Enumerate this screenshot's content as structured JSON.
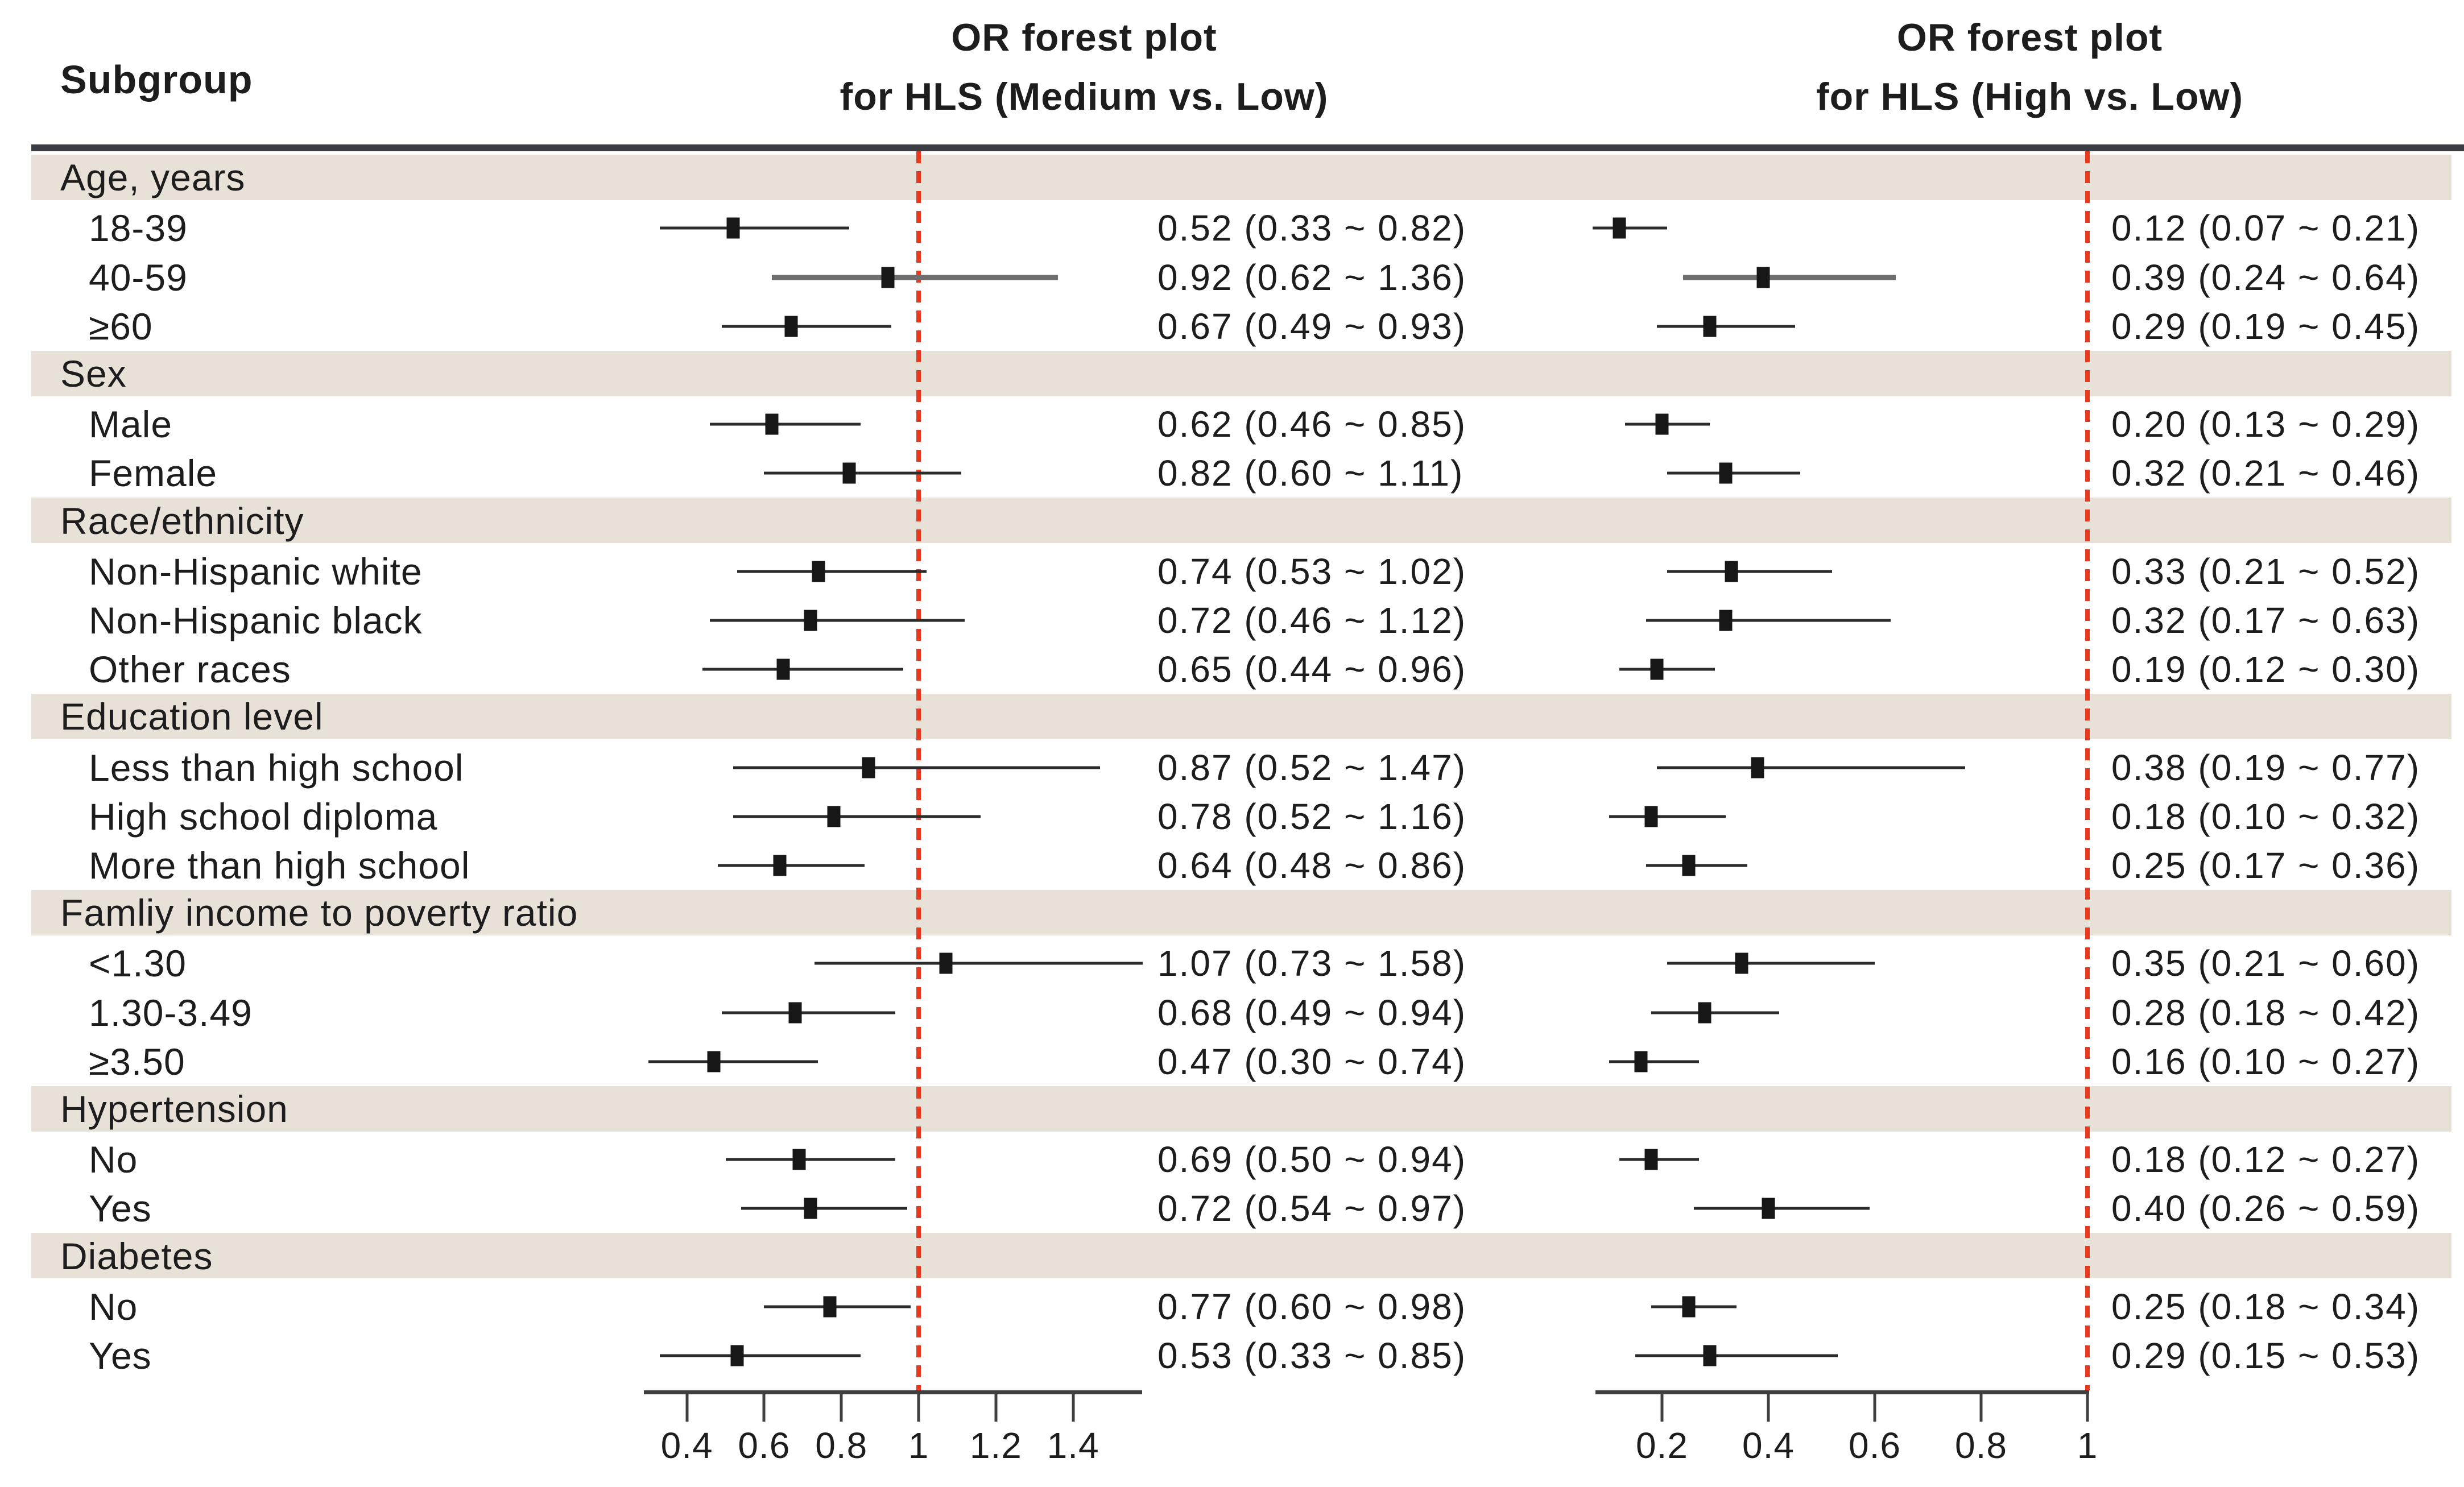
{
  "header": {
    "subgroup_label": "Subgroup",
    "left_title_line1": "OR forest plot",
    "left_title_line2": "for HLS (Medium vs. Low)",
    "right_title_line1": "OR forest plot",
    "right_title_line2": "for HLS (High vs. Low)"
  },
  "colors": {
    "band": "#e8e1d8",
    "reference_line": "#e8391f",
    "ci_line": "#2b2b2b",
    "ci_line_heavy": "#6e6e6e",
    "marker": "#171717",
    "axis": "#3f3f3f",
    "top_rule": "#3a3d43",
    "text": "#1d1d1d"
  },
  "chart_data": {
    "type": "scatter",
    "variant": "forest-plot",
    "title_left": "OR forest plot for HLS (Medium vs. Low)",
    "title_right": "OR forest plot for HLS (High vs. Low)",
    "reference_value": 1,
    "axes": {
      "medium": {
        "tick_labels": [
          "0.4",
          "0.6",
          "0.8",
          "1",
          "1.2",
          "1.4"
        ],
        "ticks": [
          0.4,
          0.6,
          0.8,
          1,
          1.2,
          1.4
        ],
        "range": [
          0.29,
          1.58
        ],
        "ref": 1,
        "scale": "linear"
      },
      "high": {
        "tick_labels": [
          "0.2",
          "0.4",
          "0.6",
          "0.8",
          "1"
        ],
        "ticks": [
          0.2,
          0.4,
          0.6,
          0.8,
          1
        ],
        "range": [
          0.07,
          1.0
        ],
        "ref": 1,
        "scale": "linear"
      }
    },
    "groups": [
      {
        "label": "Age, years",
        "items": [
          {
            "label": "18-39",
            "weight": "normal",
            "medium": {
              "est": 0.52,
              "lo": 0.33,
              "hi": 0.82,
              "text": "0.52 (0.33 ~ 0.82)"
            },
            "high": {
              "est": 0.12,
              "lo": 0.07,
              "hi": 0.21,
              "text": "0.12 (0.07 ~ 0.21)"
            }
          },
          {
            "label": "40-59",
            "weight": "thick",
            "medium": {
              "est": 0.92,
              "lo": 0.62,
              "hi": 1.36,
              "text": "0.92 (0.62 ~ 1.36)"
            },
            "high": {
              "est": 0.39,
              "lo": 0.24,
              "hi": 0.64,
              "text": "0.39 (0.24 ~ 0.64)"
            }
          },
          {
            "label": "≥60",
            "weight": "normal",
            "medium": {
              "est": 0.67,
              "lo": 0.49,
              "hi": 0.93,
              "text": "0.67 (0.49 ~ 0.93)"
            },
            "high": {
              "est": 0.29,
              "lo": 0.19,
              "hi": 0.45,
              "text": "0.29 (0.19 ~ 0.45)"
            }
          }
        ]
      },
      {
        "label": "Sex",
        "items": [
          {
            "label": "Male",
            "weight": "normal",
            "medium": {
              "est": 0.62,
              "lo": 0.46,
              "hi": 0.85,
              "text": "0.62 (0.46 ~ 0.85)"
            },
            "high": {
              "est": 0.2,
              "lo": 0.13,
              "hi": 0.29,
              "text": "0.20 (0.13 ~ 0.29)"
            }
          },
          {
            "label": "Female",
            "weight": "normal",
            "medium": {
              "est": 0.82,
              "lo": 0.6,
              "hi": 1.11,
              "text": "0.82 (0.60 ~ 1.11)"
            },
            "high": {
              "est": 0.32,
              "lo": 0.21,
              "hi": 0.46,
              "text": "0.32 (0.21 ~ 0.46)"
            }
          }
        ]
      },
      {
        "label": "Race/ethnicity",
        "items": [
          {
            "label": "Non-Hispanic white",
            "weight": "normal",
            "medium": {
              "est": 0.74,
              "lo": 0.53,
              "hi": 1.02,
              "text": "0.74 (0.53 ~ 1.02)"
            },
            "high": {
              "est": 0.33,
              "lo": 0.21,
              "hi": 0.52,
              "text": "0.33 (0.21 ~ 0.52)"
            }
          },
          {
            "label": "Non-Hispanic black",
            "weight": "normal",
            "medium": {
              "est": 0.72,
              "lo": 0.46,
              "hi": 1.12,
              "text": "0.72 (0.46 ~ 1.12)"
            },
            "high": {
              "est": 0.32,
              "lo": 0.17,
              "hi": 0.63,
              "text": "0.32 (0.17 ~ 0.63)"
            }
          },
          {
            "label": "Other races",
            "weight": "normal",
            "medium": {
              "est": 0.65,
              "lo": 0.44,
              "hi": 0.96,
              "text": "0.65 (0.44 ~ 0.96)"
            },
            "high": {
              "est": 0.19,
              "lo": 0.12,
              "hi": 0.3,
              "text": "0.19 (0.12 ~ 0.30)"
            }
          }
        ]
      },
      {
        "label": "Education level",
        "items": [
          {
            "label": "Less than high school",
            "weight": "normal",
            "medium": {
              "est": 0.87,
              "lo": 0.52,
              "hi": 1.47,
              "text": "0.87 (0.52 ~ 1.47)"
            },
            "high": {
              "est": 0.38,
              "lo": 0.19,
              "hi": 0.77,
              "text": "0.38 (0.19 ~ 0.77)"
            }
          },
          {
            "label": "High school diploma",
            "weight": "normal",
            "medium": {
              "est": 0.78,
              "lo": 0.52,
              "hi": 1.16,
              "text": "0.78 (0.52 ~ 1.16)"
            },
            "high": {
              "est": 0.18,
              "lo": 0.1,
              "hi": 0.32,
              "text": "0.18 (0.10 ~ 0.32)"
            }
          },
          {
            "label": "More than high school",
            "weight": "normal",
            "medium": {
              "est": 0.64,
              "lo": 0.48,
              "hi": 0.86,
              "text": "0.64 (0.48 ~ 0.86)"
            },
            "high": {
              "est": 0.25,
              "lo": 0.17,
              "hi": 0.36,
              "text": "0.25 (0.17 ~ 0.36)"
            }
          }
        ]
      },
      {
        "label": "Famliy income to poverty ratio",
        "items": [
          {
            "label": "<1.30",
            "weight": "normal",
            "medium": {
              "est": 1.07,
              "lo": 0.73,
              "hi": 1.58,
              "text": "1.07 (0.73 ~ 1.58)"
            },
            "high": {
              "est": 0.35,
              "lo": 0.21,
              "hi": 0.6,
              "text": "0.35 (0.21 ~ 0.60)"
            }
          },
          {
            "label": "1.30-3.49",
            "weight": "normal",
            "medium": {
              "est": 0.68,
              "lo": 0.49,
              "hi": 0.94,
              "text": "0.68 (0.49 ~ 0.94)"
            },
            "high": {
              "est": 0.28,
              "lo": 0.18,
              "hi": 0.42,
              "text": "0.28 (0.18 ~ 0.42)"
            }
          },
          {
            "label": "≥3.50",
            "weight": "normal",
            "medium": {
              "est": 0.47,
              "lo": 0.3,
              "hi": 0.74,
              "text": "0.47 (0.30 ~ 0.74)"
            },
            "high": {
              "est": 0.16,
              "lo": 0.1,
              "hi": 0.27,
              "text": "0.16 (0.10 ~ 0.27)"
            }
          }
        ]
      },
      {
        "label": "Hypertension",
        "items": [
          {
            "label": "No",
            "weight": "normal",
            "medium": {
              "est": 0.69,
              "lo": 0.5,
              "hi": 0.94,
              "text": "0.69 (0.50 ~ 0.94)"
            },
            "high": {
              "est": 0.18,
              "lo": 0.12,
              "hi": 0.27,
              "text": "0.18 (0.12 ~ 0.27)"
            }
          },
          {
            "label": "Yes",
            "weight": "normal",
            "medium": {
              "est": 0.72,
              "lo": 0.54,
              "hi": 0.97,
              "text": "0.72 (0.54 ~ 0.97)"
            },
            "high": {
              "est": 0.4,
              "lo": 0.26,
              "hi": 0.59,
              "text": "0.40 (0.26 ~ 0.59)"
            }
          }
        ]
      },
      {
        "label": "Diabetes",
        "items": [
          {
            "label": "No",
            "weight": "normal",
            "medium": {
              "est": 0.77,
              "lo": 0.6,
              "hi": 0.98,
              "text": "0.77 (0.60 ~ 0.98)"
            },
            "high": {
              "est": 0.25,
              "lo": 0.18,
              "hi": 0.34,
              "text": "0.25 (0.18 ~ 0.34)"
            }
          },
          {
            "label": "Yes",
            "weight": "normal",
            "medium": {
              "est": 0.53,
              "lo": 0.33,
              "hi": 0.85,
              "text": "0.53 (0.33 ~ 0.85)"
            },
            "high": {
              "est": 0.29,
              "lo": 0.15,
              "hi": 0.53,
              "text": "0.29 (0.15 ~ 0.53)"
            }
          }
        ]
      }
    ]
  }
}
